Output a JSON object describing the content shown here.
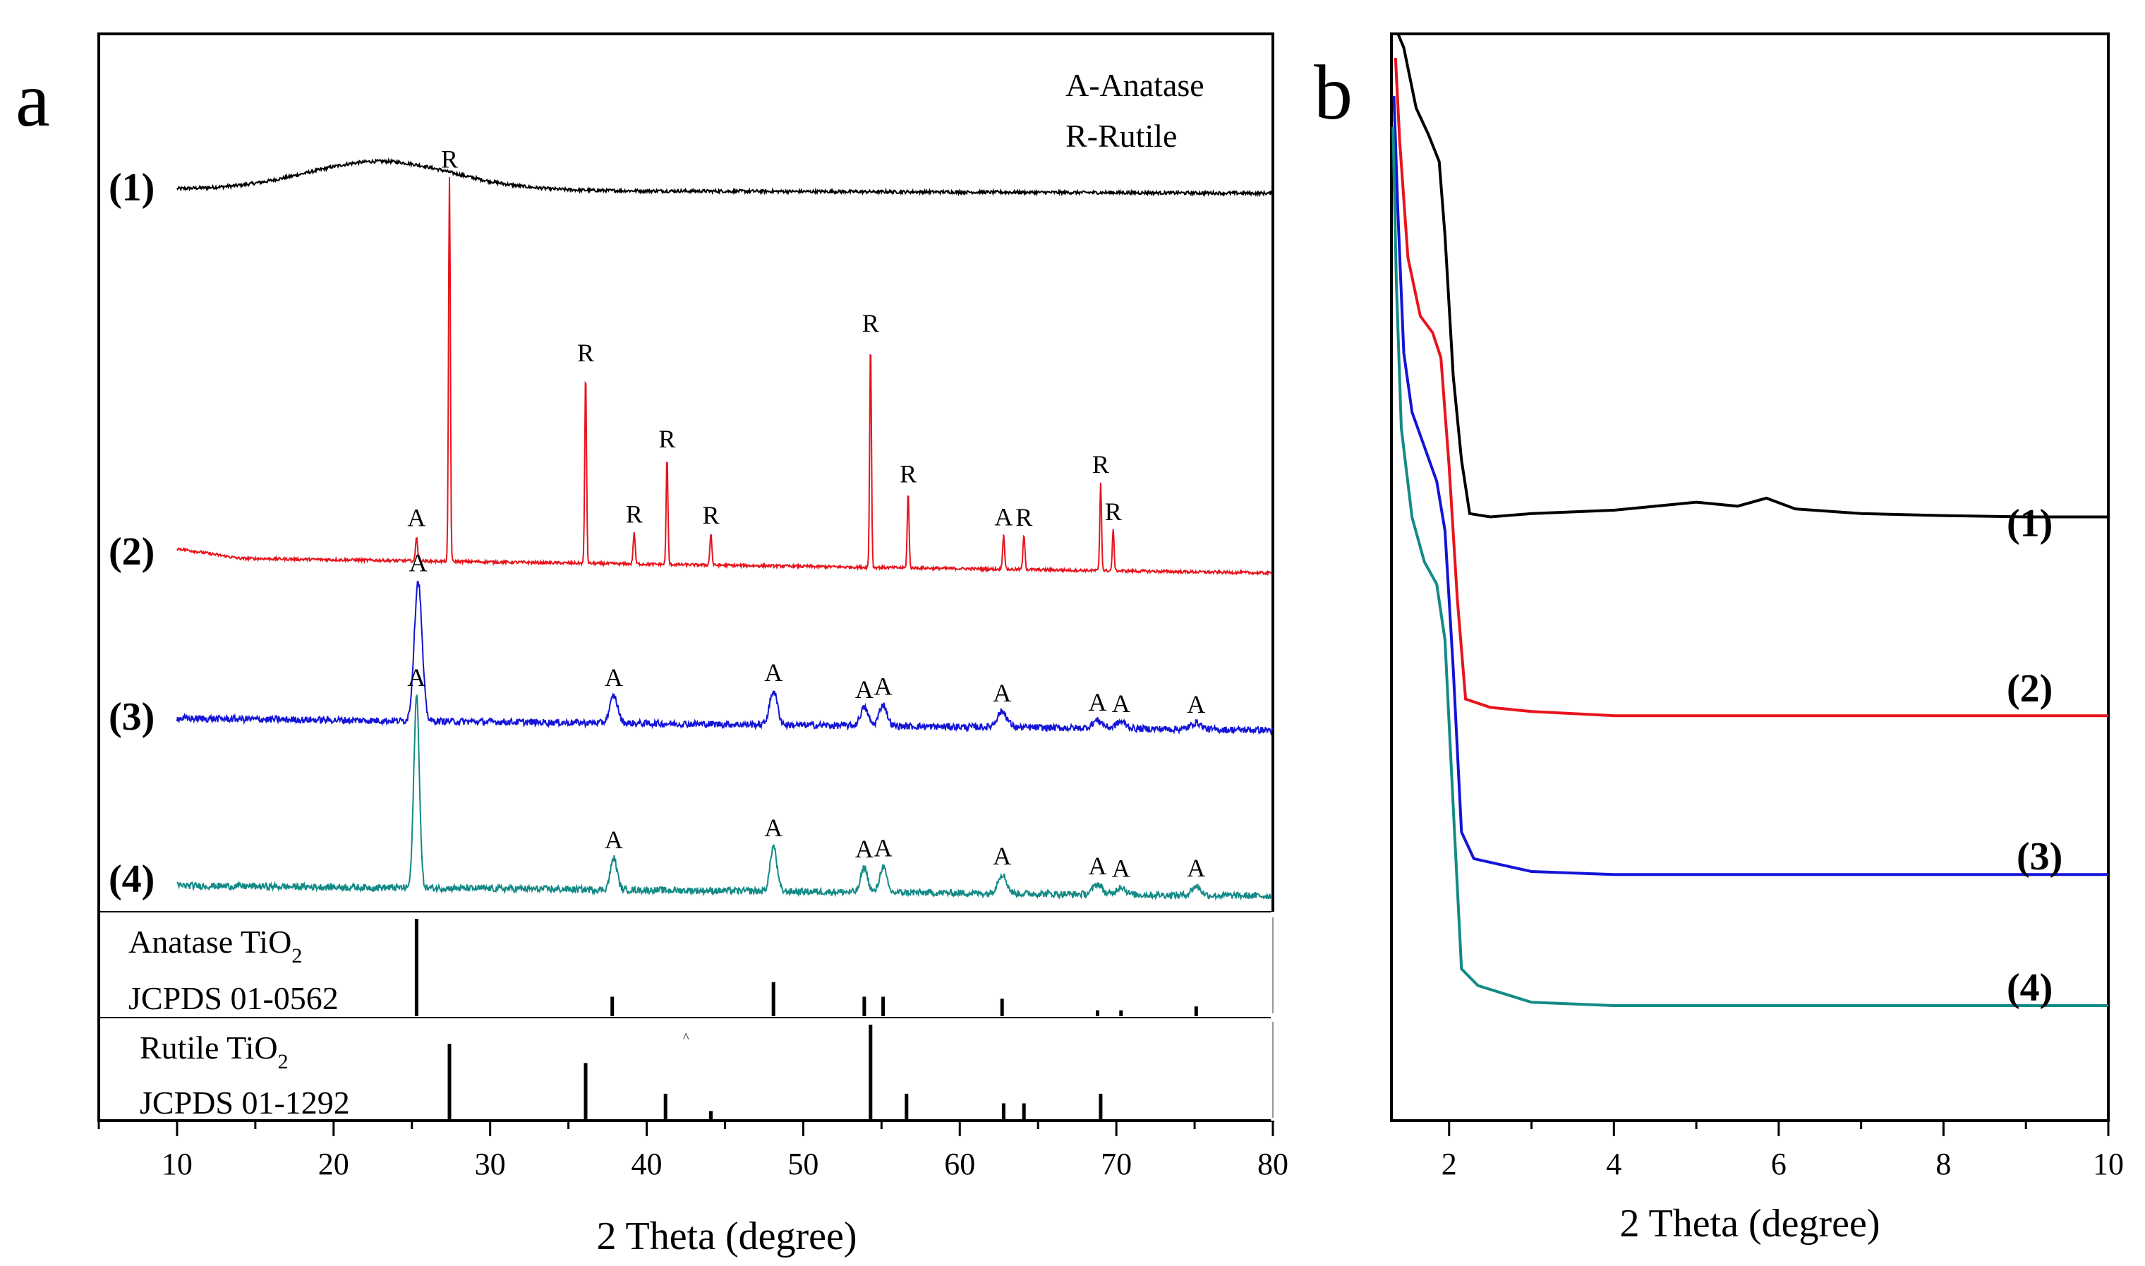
{
  "panels": {
    "a": {
      "letter": "a"
    },
    "b": {
      "letter": "b"
    }
  },
  "chart_data": [
    {
      "panel": "a",
      "type": "line",
      "title": "",
      "xlabel": "2 Theta (degree)",
      "ylabel": "",
      "xlim": [
        5,
        80
      ],
      "xticks": [
        10,
        20,
        30,
        40,
        50,
        60,
        70,
        80
      ],
      "legend_text": [
        "A-Anatase",
        "R-Rutile"
      ],
      "colors": {
        "1": "#000000",
        "2": "#e8141c",
        "3": "#1414d8",
        "4": "#138a86"
      },
      "series": [
        {
          "name": "(1)",
          "description": "amorphous",
          "broad_hump": {
            "center": 23,
            "height": 0.45
          },
          "noise": 0.05,
          "peaks": []
        },
        {
          "name": "(2)",
          "peaks": [
            {
              "x": 25.3,
              "h": 0.22,
              "w": 0.09,
              "label": "A"
            },
            {
              "x": 27.4,
              "h": 3.4,
              "w": 0.08,
              "label": "R"
            },
            {
              "x": 36.1,
              "h": 1.7,
              "w": 0.08,
              "label": "R"
            },
            {
              "x": 39.2,
              "h": 0.28,
              "w": 0.09,
              "label": "R"
            },
            {
              "x": 41.3,
              "h": 0.95,
              "w": 0.08,
              "label": "R"
            },
            {
              "x": 44.1,
              "h": 0.28,
              "w": 0.09,
              "label": "R"
            },
            {
              "x": 54.3,
              "h": 2.0,
              "w": 0.08,
              "label": "R"
            },
            {
              "x": 56.7,
              "h": 0.67,
              "w": 0.08,
              "label": "R"
            },
            {
              "x": 62.8,
              "h": 0.3,
              "w": 0.09,
              "label": "A"
            },
            {
              "x": 64.1,
              "h": 0.3,
              "w": 0.09,
              "label": "R"
            },
            {
              "x": 69.0,
              "h": 0.78,
              "w": 0.08,
              "label": "R"
            },
            {
              "x": 69.8,
              "h": 0.36,
              "w": 0.08,
              "label": "R"
            }
          ]
        },
        {
          "name": "(3)",
          "peaks": [
            {
              "x": 25.4,
              "h": 1.24,
              "w": 0.35,
              "label": "A"
            },
            {
              "x": 37.9,
              "h": 0.24,
              "w": 0.35,
              "label": "A"
            },
            {
              "x": 48.1,
              "h": 0.3,
              "w": 0.35,
              "label": "A"
            },
            {
              "x": 53.9,
              "h": 0.16,
              "w": 0.35,
              "label": "A"
            },
            {
              "x": 55.1,
              "h": 0.19,
              "w": 0.35,
              "label": "A"
            },
            {
              "x": 62.7,
              "h": 0.14,
              "w": 0.45,
              "label": "A"
            },
            {
              "x": 68.8,
              "h": 0.07,
              "w": 0.45,
              "label": "A"
            },
            {
              "x": 70.3,
              "h": 0.06,
              "w": 0.45,
              "label": "A"
            },
            {
              "x": 75.1,
              "h": 0.06,
              "w": 0.45,
              "label": "A"
            }
          ]
        },
        {
          "name": "(4)",
          "peaks": [
            {
              "x": 25.3,
              "h": 1.7,
              "w": 0.25,
              "label": "A"
            },
            {
              "x": 37.9,
              "h": 0.28,
              "w": 0.3,
              "label": "A"
            },
            {
              "x": 48.1,
              "h": 0.4,
              "w": 0.3,
              "label": "A"
            },
            {
              "x": 53.9,
              "h": 0.22,
              "w": 0.3,
              "label": "A"
            },
            {
              "x": 55.1,
              "h": 0.23,
              "w": 0.3,
              "label": "A"
            },
            {
              "x": 62.7,
              "h": 0.17,
              "w": 0.4,
              "label": "A"
            },
            {
              "x": 68.8,
              "h": 0.09,
              "w": 0.4,
              "label": "A"
            },
            {
              "x": 70.3,
              "h": 0.07,
              "w": 0.4,
              "label": "A"
            },
            {
              "x": 75.1,
              "h": 0.08,
              "w": 0.4,
              "label": "A"
            }
          ]
        }
      ],
      "references": [
        {
          "name": "Anatase TiO2",
          "label_main": "Anatase TiO",
          "label_sub": "2",
          "card": "JCPDS 01-0562",
          "sticks": [
            {
              "x": 25.3,
              "i": 100
            },
            {
              "x": 37.8,
              "i": 20
            },
            {
              "x": 48.1,
              "i": 35
            },
            {
              "x": 53.9,
              "i": 20
            },
            {
              "x": 55.1,
              "i": 20
            },
            {
              "x": 62.7,
              "i": 18
            },
            {
              "x": 68.8,
              "i": 6
            },
            {
              "x": 70.3,
              "i": 6
            },
            {
              "x": 75.1,
              "i": 10
            }
          ]
        },
        {
          "name": "Rutile TiO2",
          "label_main": "Rutile TiO",
          "label_sub": "2",
          "card": "JCPDS 01-1292",
          "stray_mark": "^",
          "sticks": [
            {
              "x": 27.4,
              "i": 80
            },
            {
              "x": 36.1,
              "i": 60
            },
            {
              "x": 41.2,
              "i": 28
            },
            {
              "x": 44.1,
              "i": 10
            },
            {
              "x": 54.3,
              "i": 100
            },
            {
              "x": 56.6,
              "i": 28
            },
            {
              "x": 62.8,
              "i": 18
            },
            {
              "x": 64.1,
              "i": 18
            },
            {
              "x": 69.0,
              "i": 28
            }
          ]
        }
      ]
    },
    {
      "panel": "b",
      "type": "line",
      "title": "",
      "xlabel": "2 Theta (degree)",
      "ylabel": "",
      "xlim": [
        1.3,
        10
      ],
      "xticks": [
        2,
        4,
        6,
        8,
        10
      ],
      "colors": {
        "1": "#000000",
        "2": "#e8141c",
        "3": "#1414d8",
        "4": "#138a86"
      },
      "series": [
        {
          "name": "(1)",
          "points": [
            [
              1.38,
              8.0
            ],
            [
              1.45,
              7.5
            ],
            [
              1.6,
              6.6
            ],
            [
              1.75,
              6.2
            ],
            [
              1.88,
              5.8
            ],
            [
              1.95,
              4.7
            ],
            [
              2.05,
              2.6
            ],
            [
              2.15,
              1.35
            ],
            [
              2.25,
              0.55
            ],
            [
              2.5,
              0.5
            ],
            [
              3.0,
              0.55
            ],
            [
              4.0,
              0.6
            ],
            [
              5.0,
              0.72
            ],
            [
              5.5,
              0.66
            ],
            [
              5.85,
              0.78
            ],
            [
              6.2,
              0.62
            ],
            [
              7.0,
              0.55
            ],
            [
              8.0,
              0.52
            ],
            [
              9.0,
              0.5
            ],
            [
              10.0,
              0.5
            ]
          ]
        },
        {
          "name": "(2)",
          "points": [
            [
              1.35,
              8.0
            ],
            [
              1.4,
              7.0
            ],
            [
              1.5,
              5.6
            ],
            [
              1.65,
              4.9
            ],
            [
              1.8,
              4.7
            ],
            [
              1.9,
              4.4
            ],
            [
              2.0,
              3.1
            ],
            [
              2.1,
              1.5
            ],
            [
              2.2,
              0.3
            ],
            [
              2.5,
              0.2
            ],
            [
              3.0,
              0.15
            ],
            [
              4.0,
              0.1
            ],
            [
              6.0,
              0.1
            ],
            [
              8.0,
              0.1
            ],
            [
              10.0,
              0.1
            ]
          ]
        },
        {
          "name": "(3)",
          "points": [
            [
              1.33,
              8.0
            ],
            [
              1.38,
              6.8
            ],
            [
              1.45,
              5.4
            ],
            [
              1.55,
              4.8
            ],
            [
              1.7,
              4.45
            ],
            [
              1.85,
              4.1
            ],
            [
              1.95,
              3.6
            ],
            [
              2.05,
              2.2
            ],
            [
              2.15,
              0.55
            ],
            [
              2.3,
              0.28
            ],
            [
              3.0,
              0.15
            ],
            [
              4.0,
              0.12
            ],
            [
              6.0,
              0.12
            ],
            [
              8.0,
              0.12
            ],
            [
              10.0,
              0.12
            ]
          ]
        },
        {
          "name": "(4)",
          "points": [
            [
              1.32,
              8.0
            ],
            [
              1.36,
              6.6
            ],
            [
              1.42,
              5.3
            ],
            [
              1.55,
              4.5
            ],
            [
              1.7,
              4.1
            ],
            [
              1.85,
              3.9
            ],
            [
              1.95,
              3.4
            ],
            [
              2.05,
              1.9
            ],
            [
              2.15,
              0.45
            ],
            [
              2.35,
              0.3
            ],
            [
              3.0,
              0.15
            ],
            [
              4.0,
              0.12
            ],
            [
              6.0,
              0.12
            ],
            [
              8.0,
              0.12
            ],
            [
              10.0,
              0.12
            ]
          ]
        }
      ]
    }
  ]
}
